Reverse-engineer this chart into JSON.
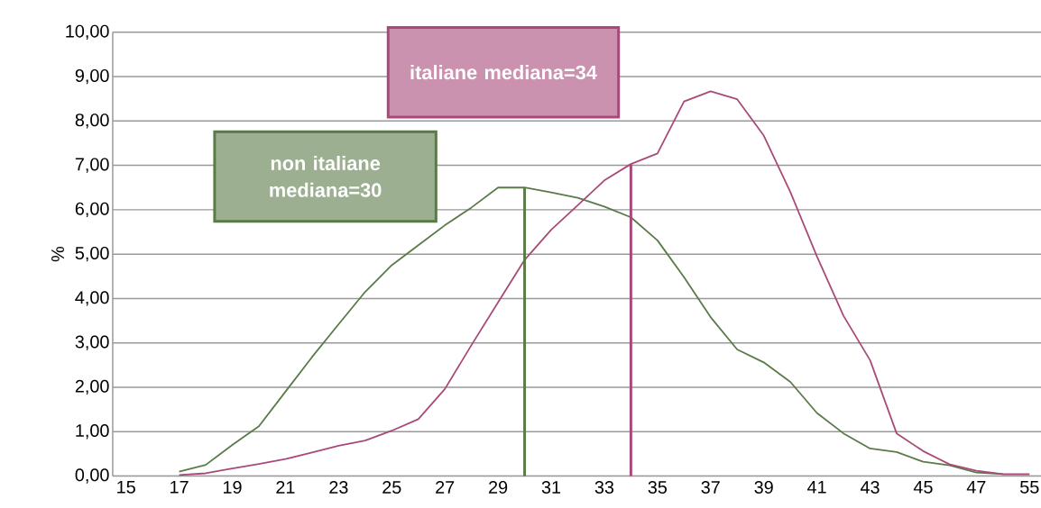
{
  "chart_data": {
    "type": "line",
    "ylabel": "%",
    "categories": [
      "15",
      null,
      "17",
      null,
      "19",
      null,
      "21",
      null,
      "23",
      null,
      "25",
      null,
      "27",
      null,
      "29",
      null,
      "31",
      null,
      "33",
      null,
      "35",
      null,
      "37",
      null,
      "39",
      null,
      "41",
      null,
      "43",
      null,
      "45",
      null,
      "47",
      null,
      "55"
    ],
    "series": [
      {
        "color": "#5a7a48",
        "values": [
          null,
          null,
          0.1,
          0.25,
          0.7,
          1.12,
          1.9,
          2.68,
          3.42,
          4.15,
          4.75,
          5.2,
          5.65,
          6.05,
          6.5,
          6.5,
          6.39,
          6.27,
          6.07,
          5.83,
          5.31,
          4.48,
          3.58,
          2.85,
          2.56,
          2.12,
          1.42,
          0.96,
          0.62,
          0.54,
          0.32,
          0.24,
          0.08,
          0.04,
          null
        ]
      },
      {
        "color": "#a84a79",
        "values": [
          null,
          null,
          0.02,
          0.06,
          0.17,
          0.27,
          0.38,
          0.53,
          0.68,
          0.8,
          1.02,
          1.28,
          1.96,
          2.95,
          3.91,
          4.87,
          5.55,
          6.1,
          6.66,
          7.03,
          7.27,
          8.44,
          8.67,
          8.49,
          7.67,
          6.4,
          4.95,
          3.61,
          2.61,
          0.96,
          0.56,
          0.26,
          0.12,
          0.04,
          0.04
        ]
      },
      {
        "type": "bar",
        "color": "#5a7a48",
        "values": [
          null,
          null,
          null,
          null,
          null,
          null,
          null,
          null,
          null,
          null,
          null,
          null,
          null,
          null,
          null,
          6.5,
          null,
          null,
          null,
          null,
          null,
          null,
          null,
          null,
          null,
          null,
          null,
          null,
          null,
          null,
          null,
          null,
          null,
          null,
          null
        ]
      },
      {
        "type": "bar",
        "color": "#a84a79",
        "values": [
          null,
          null,
          null,
          null,
          null,
          null,
          null,
          null,
          null,
          null,
          null,
          null,
          null,
          null,
          null,
          null,
          null,
          null,
          null,
          7.03,
          null,
          null,
          null,
          null,
          null,
          null,
          null,
          null,
          null,
          null,
          null,
          null,
          null,
          null,
          null
        ]
      }
    ],
    "annotations": [
      "non italiane mediana=30",
      "italiane mediana=34"
    ],
    "ylim": [
      0,
      10
    ],
    "yticks": [
      {
        "value": 0,
        "label": "0,00"
      },
      {
        "value": 1,
        "label": "1,00"
      },
      {
        "value": 2,
        "label": "2,00"
      },
      {
        "value": 3,
        "label": "3,00"
      },
      {
        "value": 4,
        "label": "4,00"
      },
      {
        "value": 5,
        "label": "5,00"
      },
      {
        "value": 6,
        "label": "6,00"
      },
      {
        "value": 7,
        "label": "7,00"
      },
      {
        "value": 8,
        "label": "8,00"
      },
      {
        "value": 9,
        "label": "9,00"
      },
      {
        "value": 10,
        "label": "10,00"
      }
    ],
    "grid": "y",
    "marker": "none",
    "line_style": "solid"
  }
}
